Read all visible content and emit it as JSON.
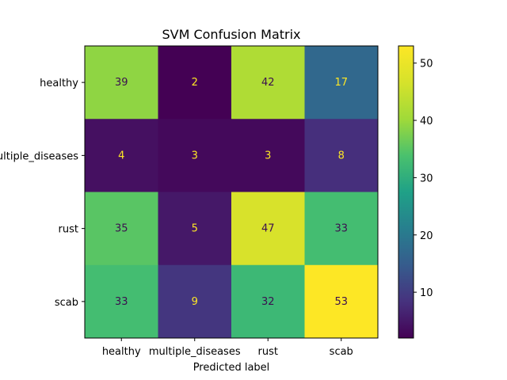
{
  "chart_data": {
    "type": "heatmap",
    "title": "SVM Confusion Matrix",
    "xlabel": "Predicted label",
    "ylabel": "",
    "x_categories": [
      "healthy",
      "multiple_diseases",
      "rust",
      "scab"
    ],
    "y_categories": [
      "healthy",
      "multiple_diseases",
      "rust",
      "scab"
    ],
    "values": [
      [
        39,
        2,
        42,
        17
      ],
      [
        4,
        3,
        3,
        8
      ],
      [
        35,
        5,
        47,
        33
      ],
      [
        33,
        9,
        32,
        53
      ]
    ],
    "colormap": "viridis",
    "color_range": [
      2,
      53
    ],
    "colorbar_ticks": [
      10,
      20,
      30,
      40,
      50
    ],
    "annotation_colors": {
      "on_dark": "#fde725",
      "on_light": "#3b0f4f"
    }
  }
}
